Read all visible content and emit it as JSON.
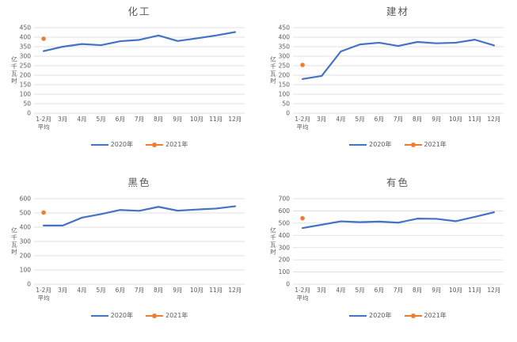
{
  "colors": {
    "background": "#ffffff",
    "series_2020": "#4472C4",
    "series_2021": "#ED7D31",
    "gridline": "#D9D9D9",
    "axis_text": "#595959",
    "title_text": "#595959"
  },
  "chart_data": [
    {
      "type": "line",
      "title": "化工",
      "xlabel": "",
      "ylabel": "亿千瓦时",
      "ylim": [
        0,
        450
      ],
      "ytick_step": 50,
      "grid": true,
      "legend_position": "bottom",
      "categories": [
        "1-2月\n平均",
        "3月",
        "4月",
        "5月",
        "6月",
        "7月",
        "8月",
        "9月",
        "10月",
        "11月",
        "12月"
      ],
      "series": [
        {
          "name": "2020年",
          "color": "#4472C4",
          "style": "line",
          "values": [
            327,
            350,
            364,
            358,
            379,
            386,
            409,
            380,
            394,
            409,
            427
          ]
        },
        {
          "name": "2021年",
          "color": "#ED7D31",
          "style": "marker",
          "values": [
            392,
            null,
            null,
            null,
            null,
            null,
            null,
            null,
            null,
            null,
            null
          ]
        }
      ]
    },
    {
      "type": "line",
      "title": "建材",
      "xlabel": "",
      "ylabel": "亿千瓦时",
      "ylim": [
        0,
        450
      ],
      "ytick_step": 50,
      "grid": true,
      "legend_position": "bottom",
      "categories": [
        "1-2月\n平均",
        "3月",
        "4月",
        "5月",
        "6月",
        "7月",
        "8月",
        "9月",
        "10月",
        "11月",
        "12月"
      ],
      "series": [
        {
          "name": "2020年",
          "color": "#4472C4",
          "style": "line",
          "values": [
            180,
            196,
            325,
            362,
            371,
            354,
            375,
            368,
            371,
            387,
            357
          ]
        },
        {
          "name": "2021年",
          "color": "#ED7D31",
          "style": "marker",
          "values": [
            254,
            null,
            null,
            null,
            null,
            null,
            null,
            null,
            null,
            null,
            null
          ]
        }
      ]
    },
    {
      "type": "line",
      "title": "黑色",
      "xlabel": "",
      "ylabel": "亿千瓦时",
      "ylim": [
        0,
        600
      ],
      "ytick_step": 100,
      "grid": true,
      "legend_position": "bottom",
      "categories": [
        "1-2月\n平均",
        "3月",
        "4月",
        "5月",
        "6月",
        "7月",
        "8月",
        "9月",
        "10月",
        "11月",
        "12月"
      ],
      "series": [
        {
          "name": "2020年",
          "color": "#4472C4",
          "style": "line",
          "values": [
            412,
            412,
            467,
            492,
            521,
            515,
            543,
            516,
            524,
            531,
            547
          ]
        },
        {
          "name": "2021年",
          "color": "#ED7D31",
          "style": "marker",
          "values": [
            503,
            null,
            null,
            null,
            null,
            null,
            null,
            null,
            null,
            null,
            null
          ]
        }
      ]
    },
    {
      "type": "line",
      "title": "有色",
      "xlabel": "",
      "ylabel": "亿千瓦时",
      "ylim": [
        0,
        700
      ],
      "ytick_step": 100,
      "grid": true,
      "legend_position": "bottom",
      "categories": [
        "1-2月\n平均",
        "3月",
        "4月",
        "5月",
        "6月",
        "7月",
        "8月",
        "9月",
        "10月",
        "11月",
        "12月"
      ],
      "series": [
        {
          "name": "2020年",
          "color": "#4472C4",
          "style": "line",
          "values": [
            460,
            487,
            515,
            508,
            513,
            504,
            537,
            535,
            516,
            551,
            589
          ]
        },
        {
          "name": "2021年",
          "color": "#ED7D31",
          "style": "marker",
          "values": [
            540,
            null,
            null,
            null,
            null,
            null,
            null,
            null,
            null,
            null,
            null
          ]
        }
      ]
    }
  ]
}
